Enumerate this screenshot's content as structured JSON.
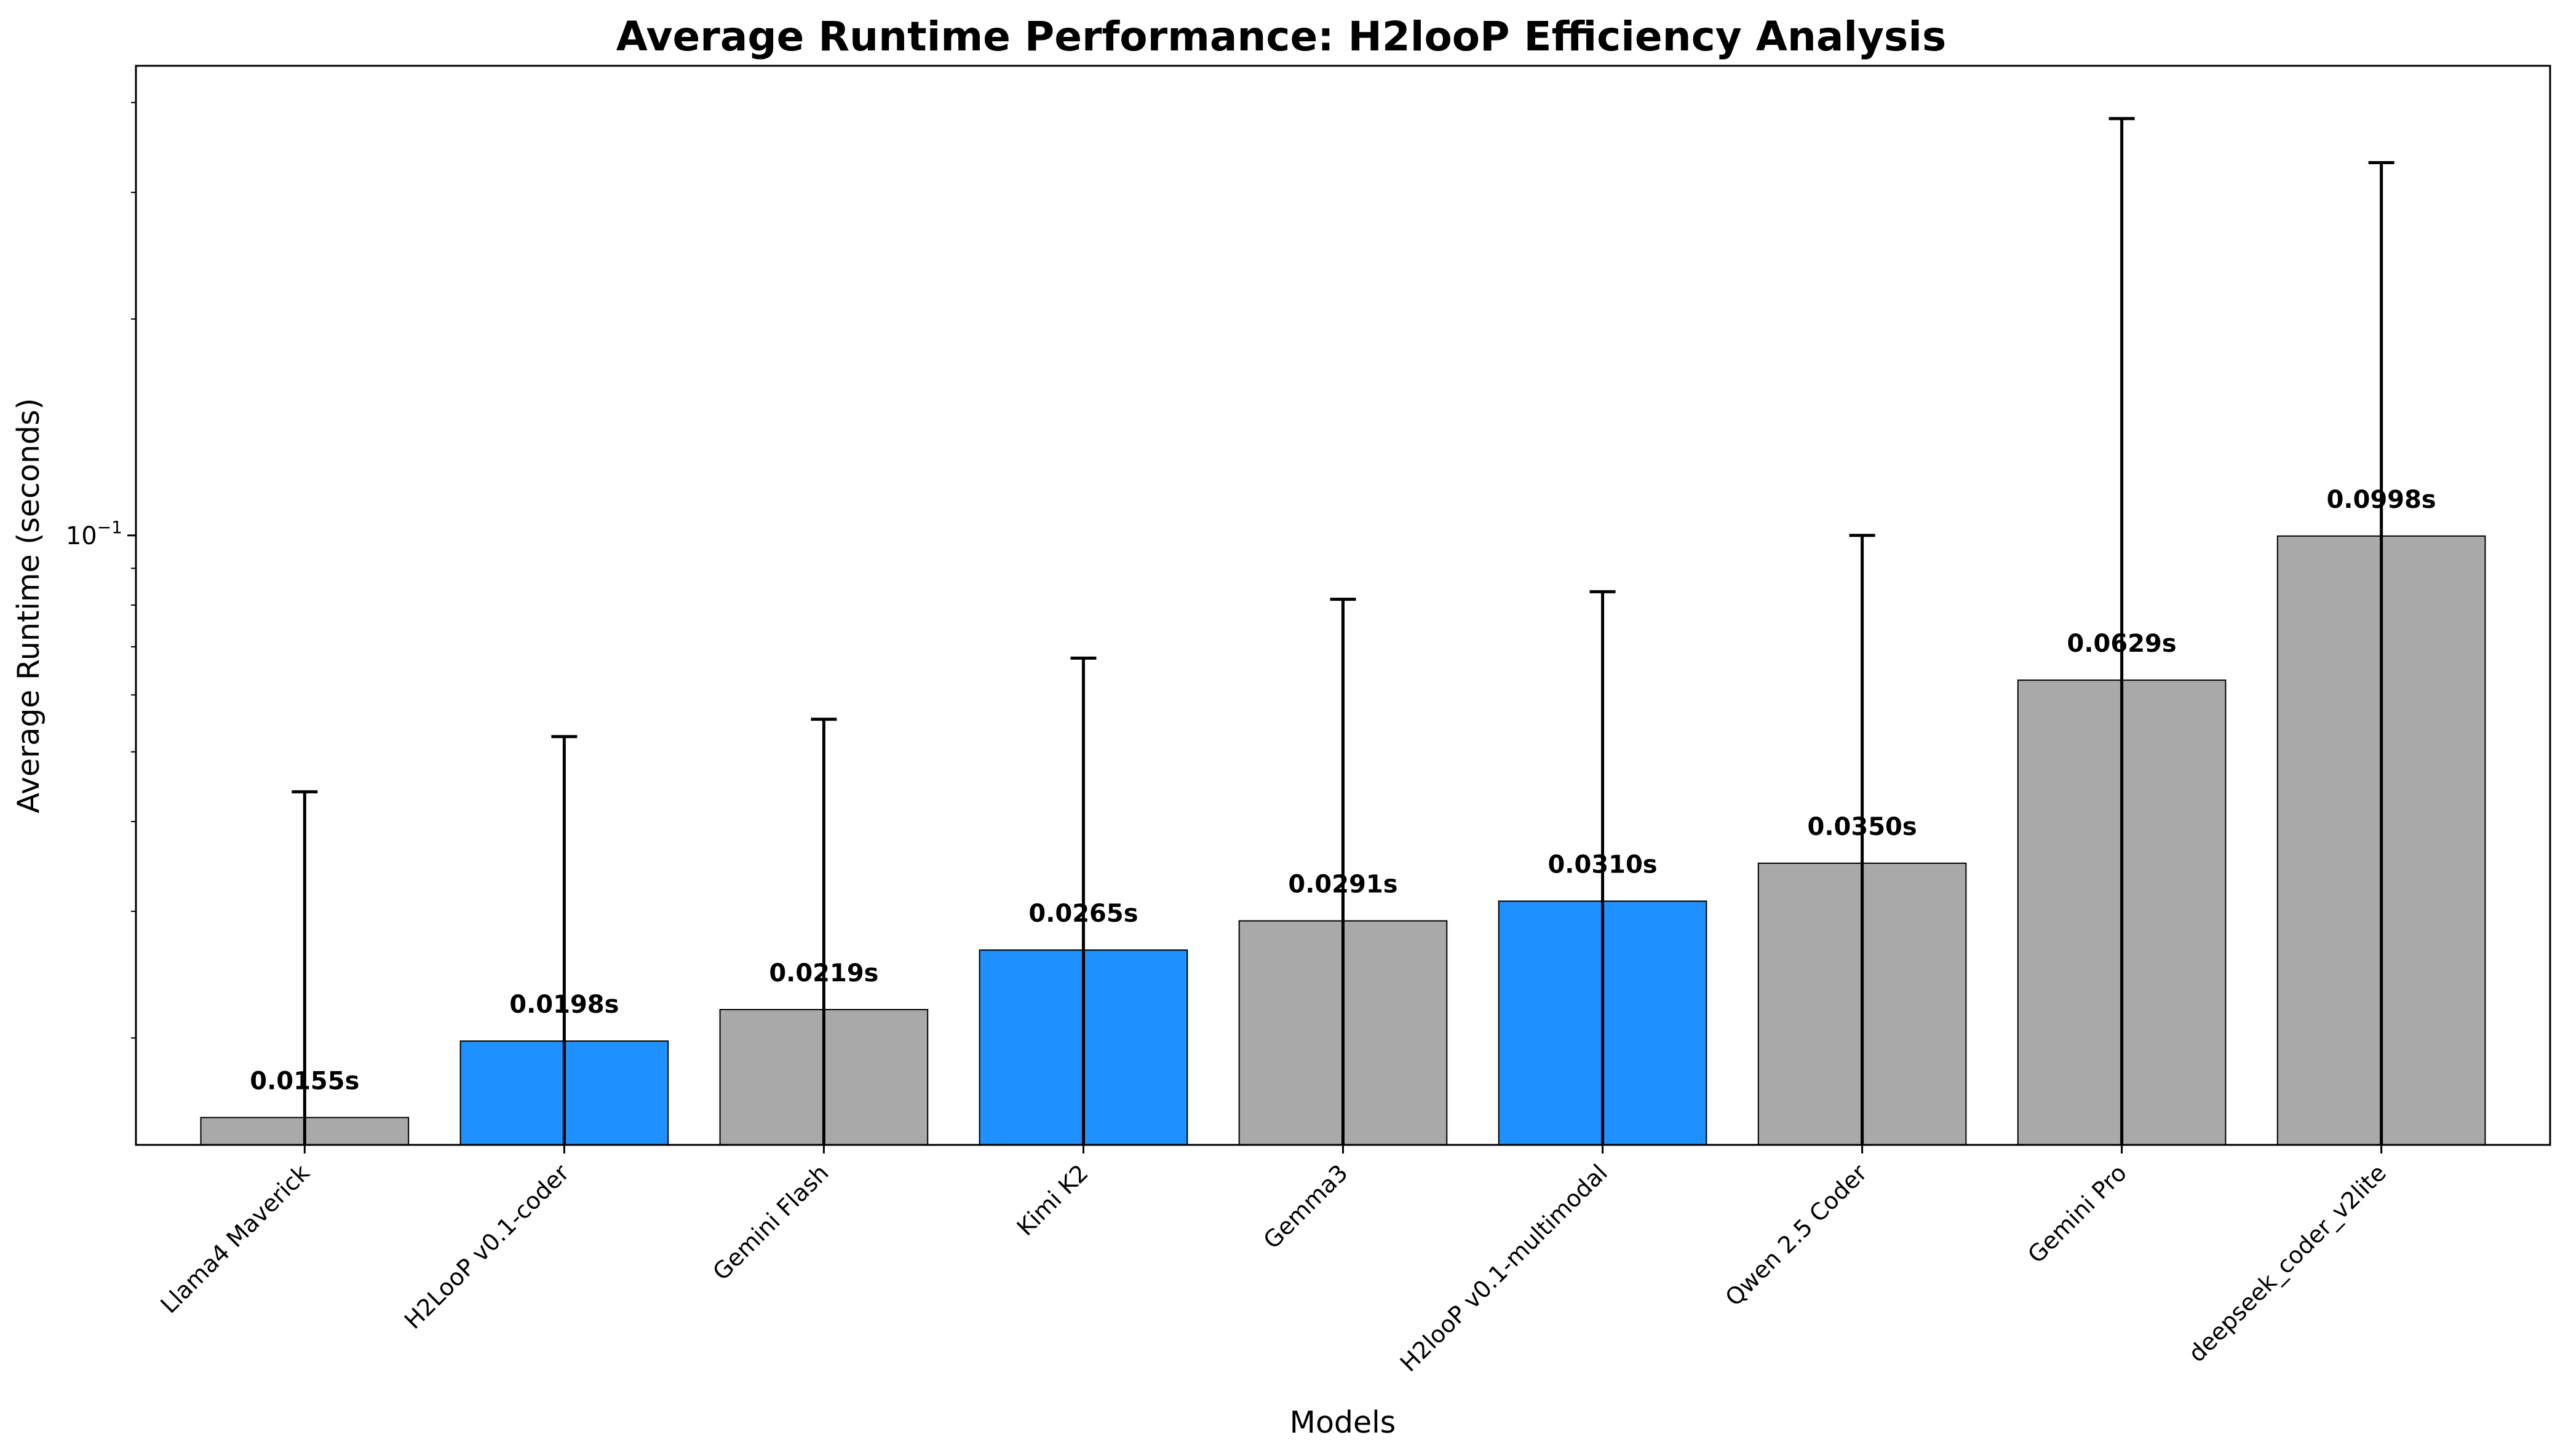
{
  "chart_data": {
    "type": "bar",
    "title": "Average Runtime Performance: H2looP Efficiency Analysis",
    "xlabel": "Models",
    "ylabel": "Average Runtime (seconds)",
    "yscale": "log",
    "ylim": [
      0.0142,
      0.45
    ],
    "yticks": [
      {
        "value": 0.1,
        "label": "10",
        "exp": "−1"
      }
    ],
    "grid": false,
    "legend": "none",
    "colors": {
      "h2loop": "#1e90ff",
      "other": "#a9a9a9",
      "edge": "#000000",
      "errorbar": "#000000"
    },
    "categories": [
      "Llama4 Maverick",
      "H2LooP v0.1-coder",
      "Gemini Flash",
      "Kimi K2",
      "Gemma3",
      "H2looP v0.1-multimodal",
      "Qwen 2.5 Coder",
      "Gemini Pro",
      "deepseek_coder_v2lite"
    ],
    "values": [
      0.0155,
      0.0198,
      0.0219,
      0.0265,
      0.0291,
      0.031,
      0.035,
      0.0629,
      0.0998
    ],
    "value_labels": [
      "0.0155s",
      "0.0198s",
      "0.0219s",
      "0.0265s",
      "0.0291s",
      "0.0310s",
      "0.0350s",
      "0.0629s",
      "0.0998s"
    ],
    "highlight": [
      false,
      true,
      false,
      true,
      false,
      true,
      false,
      false,
      false
    ],
    "error_upper": [
      0.044,
      0.0525,
      0.0555,
      0.0675,
      0.0815,
      0.0835,
      0.1,
      0.38,
      0.33
    ]
  }
}
